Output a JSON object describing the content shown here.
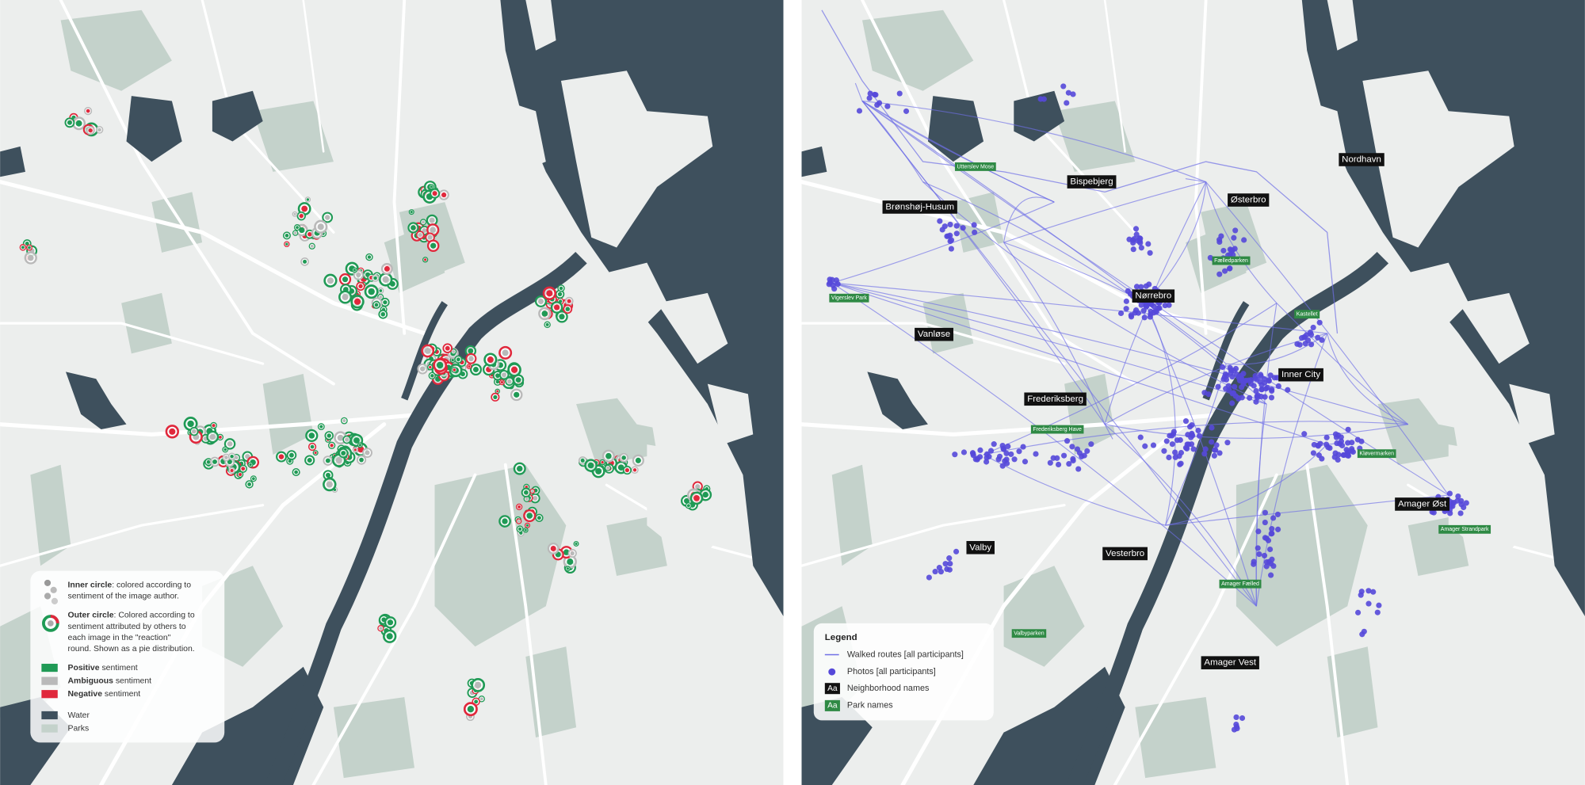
{
  "left_map": {
    "legend": {
      "inner_circle": {
        "bold": "Inner circle",
        "lines": [
          ": colored according to",
          "sentiment of the image author."
        ]
      },
      "outer_circle": {
        "bold": "Outer circle",
        "lines": [
          ": Colored according to",
          "sentiment attributed by others to",
          "each image in the \"reaction\"",
          "round. Shown as a pie distribution."
        ]
      },
      "sentiments": [
        {
          "bold": "Positive",
          "text": " sentiment",
          "color": "#1f9a55"
        },
        {
          "bold": "Ambiguous",
          "text": " sentiment",
          "color": "#b9b9b9"
        },
        {
          "bold": "Negative",
          "text": " sentiment",
          "color": "#e0283c"
        }
      ],
      "layers": [
        {
          "text": "Water",
          "color": "#3e505d"
        },
        {
          "text": "Parks",
          "color": "#c4d2cb"
        }
      ]
    }
  },
  "right_map": {
    "legend": {
      "title": "Legend",
      "routes": "Walked routes [all participants]",
      "photos": "Photos [all participants]",
      "neighborhood_key": {
        "badge": "Aa",
        "text": "Neighborhood names"
      },
      "park_key": {
        "badge": "Aa",
        "text": "Park names"
      }
    },
    "neighborhoods": [
      "Brønshøj-Husum",
      "Bispebjerg",
      "Østerbro",
      "Nordhavn",
      "Nørrebro",
      "Vanløse",
      "Inner City",
      "Frederiksberg",
      "Amager Øst",
      "Valby",
      "Vesterbro",
      "Amager Vest"
    ],
    "parks": [
      "Utterslev Mose",
      "Fælledparken",
      "Vigerslev Park",
      "Kastellet",
      "Frederiksberg Have",
      "Kløvermarken",
      "Amager Strandpark",
      "Amager Fælled",
      "Valbyparken"
    ]
  }
}
